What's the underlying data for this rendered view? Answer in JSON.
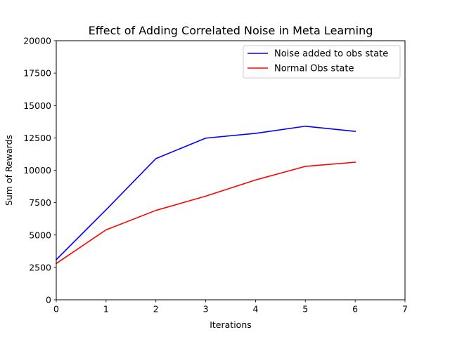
{
  "chart_data": {
    "type": "line",
    "title": "Effect of Adding Correlated Noise in Meta Learning",
    "xlabel": "Iterations",
    "ylabel": "Sum of Rewards",
    "xlim": [
      0,
      7
    ],
    "ylim": [
      0,
      20000
    ],
    "x_ticks": [
      0,
      1,
      2,
      3,
      4,
      5,
      6,
      7
    ],
    "y_ticks": [
      0,
      2500,
      5000,
      7500,
      10000,
      12500,
      15000,
      17500,
      20000
    ],
    "grid": false,
    "legend_position": "top-right",
    "series": [
      {
        "name": "Noise added to obs state",
        "color": "#0000ff",
        "x": [
          0,
          1,
          2,
          3,
          4,
          5,
          6
        ],
        "y": [
          3100,
          6950,
          10900,
          12480,
          12850,
          13400,
          13000
        ]
      },
      {
        "name": "Normal Obs state",
        "color": "#ff0000",
        "x": [
          0,
          1,
          2,
          3,
          4,
          5,
          6
        ],
        "y": [
          2800,
          5400,
          6900,
          8000,
          9250,
          10300,
          10620
        ]
      }
    ]
  }
}
